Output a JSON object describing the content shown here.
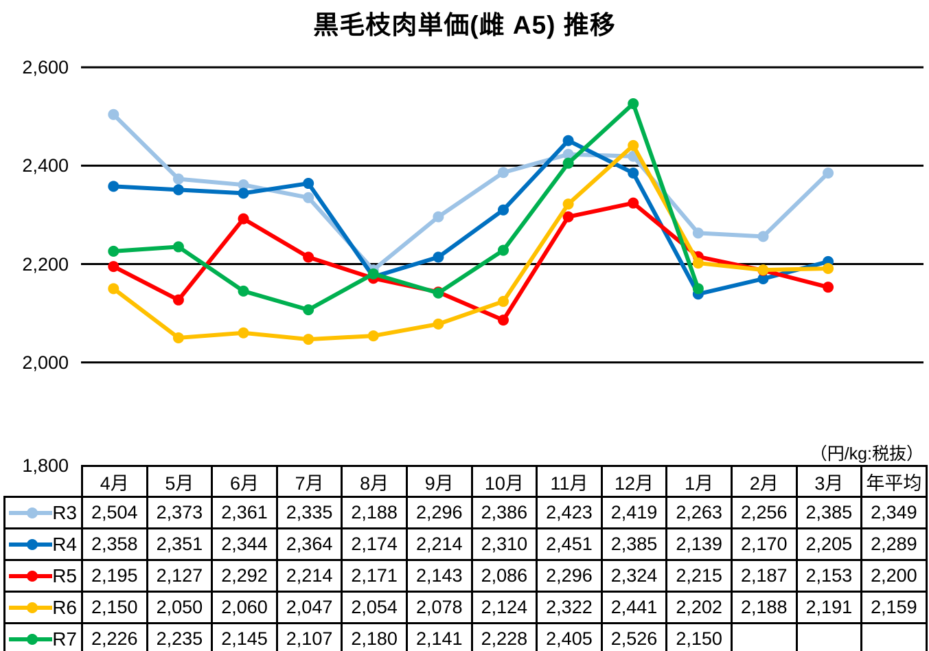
{
  "chart_data": {
    "type": "line",
    "title": "黒毛枝肉単価(雌 A5) 推移",
    "unit_note": "（円/kg:税抜）",
    "xlabel": "",
    "ylabel": "",
    "categories": [
      "4月",
      "5月",
      "6月",
      "7月",
      "8月",
      "9月",
      "10月",
      "11月",
      "12月",
      "1月",
      "2月",
      "3月"
    ],
    "average_column_label": "年平均",
    "ylim": [
      1800,
      2600
    ],
    "yticks": [
      2600,
      2400,
      2200,
      2000,
      1800
    ],
    "grid": true,
    "gridline_color": "#000000",
    "legend_position": "table-rows-left",
    "series": [
      {
        "name": "R3",
        "color": "#9DC3E6",
        "values": [
          2504,
          2373,
          2361,
          2335,
          2188,
          2296,
          2386,
          2423,
          2419,
          2263,
          2256,
          2385
        ],
        "average": 2349
      },
      {
        "name": "R4",
        "color": "#0070C0",
        "values": [
          2358,
          2351,
          2344,
          2364,
          2174,
          2214,
          2310,
          2451,
          2385,
          2139,
          2170,
          2205
        ],
        "average": 2289
      },
      {
        "name": "R5",
        "color": "#FF0000",
        "values": [
          2195,
          2127,
          2292,
          2214,
          2171,
          2143,
          2086,
          2296,
          2324,
          2215,
          2187,
          2153
        ],
        "average": 2200
      },
      {
        "name": "R6",
        "color": "#FFC000",
        "values": [
          2150,
          2050,
          2060,
          2047,
          2054,
          2078,
          2124,
          2322,
          2441,
          2202,
          2188,
          2191
        ],
        "average": 2159
      },
      {
        "name": "R7",
        "color": "#00B050",
        "values": [
          2226,
          2235,
          2145,
          2107,
          2180,
          2141,
          2228,
          2405,
          2526,
          2150,
          null,
          null
        ],
        "average": null
      }
    ]
  }
}
